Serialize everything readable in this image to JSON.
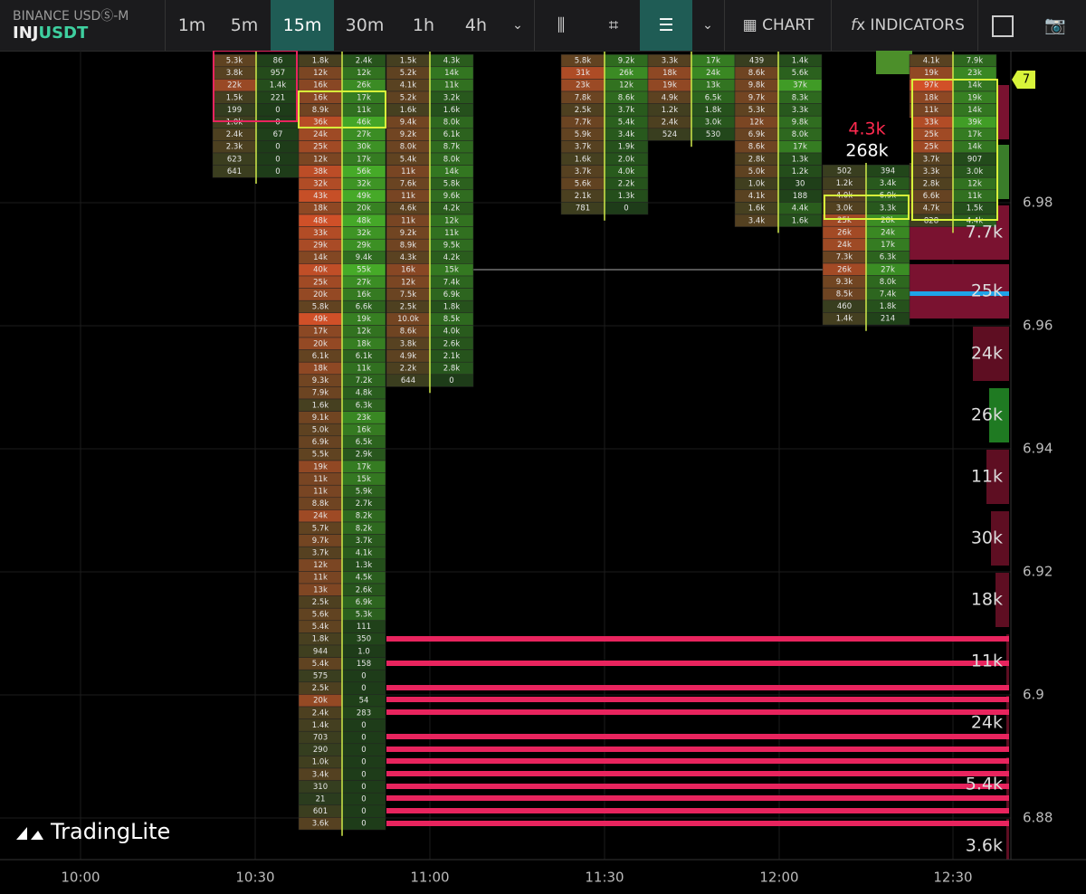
{
  "header": {
    "exchange": "BINANCE USDⓈ-M",
    "base": "INJ",
    "quote": "USDT",
    "intervals": [
      "1m",
      "5m",
      "15m",
      "30m",
      "1h",
      "4h"
    ],
    "chart": "CHART",
    "indicators": "INDICATORS"
  },
  "logo": "TradingLite",
  "price_axis": [
    "6.98",
    "6.96",
    "6.94",
    "6.92",
    "6.9",
    "6.88"
  ],
  "time_axis": [
    "10:00",
    "10:30",
    "11:00",
    "11:30",
    "12:00",
    "12:30"
  ],
  "price_marker": "7",
  "big_labels": [
    "4.3k",
    "268k"
  ],
  "heatmap_labels": [
    "7.7k",
    "25k",
    "24k",
    "26k",
    "11k",
    "30k",
    "18k",
    "11k",
    "24k",
    "5.4k",
    "3.6k"
  ],
  "columns": [
    {
      "cells": [
        [
          "5.3k",
          "86"
        ],
        [
          "3.8k",
          "957"
        ],
        [
          "22k",
          "1.4k"
        ],
        [
          "1.5k",
          "221"
        ],
        [
          "199",
          "0"
        ],
        [
          "1.0k",
          "0"
        ],
        [
          "2.4k",
          "67"
        ],
        [
          "2.3k",
          "0"
        ],
        [
          "623",
          "0"
        ],
        [
          "641",
          "0"
        ]
      ]
    },
    {
      "cells": [
        [
          "1.8k",
          "2.4k"
        ],
        [
          "12k",
          "12k"
        ],
        [
          "16k",
          "26k"
        ],
        [
          "16k",
          "17k"
        ],
        [
          "8.9k",
          "11k"
        ],
        [
          "36k",
          "46k"
        ],
        [
          "24k",
          "27k"
        ],
        [
          "25k",
          "30k"
        ],
        [
          "12k",
          "17k"
        ],
        [
          "38k",
          "56k"
        ],
        [
          "32k",
          "32k"
        ],
        [
          "43k",
          "49k"
        ],
        [
          "18k",
          "20k"
        ],
        [
          "48k",
          "48k"
        ],
        [
          "33k",
          "32k"
        ],
        [
          "29k",
          "29k"
        ],
        [
          "14k",
          "9.4k"
        ],
        [
          "40k",
          "55k"
        ],
        [
          "25k",
          "27k"
        ],
        [
          "20k",
          "16k"
        ],
        [
          "5.8k",
          "6.6k"
        ],
        [
          "49k",
          "19k"
        ],
        [
          "17k",
          "12k"
        ],
        [
          "20k",
          "18k"
        ],
        [
          "6.1k",
          "6.1k"
        ],
        [
          "18k",
          "11k"
        ],
        [
          "9.3k",
          "7.2k"
        ],
        [
          "7.9k",
          "4.8k"
        ],
        [
          "1.6k",
          "6.3k"
        ],
        [
          "9.1k",
          "23k"
        ],
        [
          "5.0k",
          "16k"
        ],
        [
          "6.9k",
          "6.5k"
        ],
        [
          "5.5k",
          "2.9k"
        ],
        [
          "19k",
          "17k"
        ],
        [
          "11k",
          "15k"
        ],
        [
          "11k",
          "5.9k"
        ],
        [
          "8.8k",
          "2.7k"
        ],
        [
          "24k",
          "8.2k"
        ],
        [
          "5.7k",
          "8.2k"
        ],
        [
          "9.7k",
          "3.7k"
        ],
        [
          "3.7k",
          "4.1k"
        ],
        [
          "12k",
          "1.3k"
        ],
        [
          "11k",
          "4.5k"
        ],
        [
          "13k",
          "2.6k"
        ],
        [
          "2.5k",
          "6.9k"
        ],
        [
          "5.6k",
          "5.3k"
        ],
        [
          "5.4k",
          "111"
        ],
        [
          "1.8k",
          "350"
        ],
        [
          "944",
          "1.0"
        ],
        [
          "5.4k",
          "158"
        ],
        [
          "575",
          "0"
        ],
        [
          "2.5k",
          "0"
        ],
        [
          "20k",
          "54"
        ],
        [
          "2.4k",
          "283"
        ],
        [
          "1.4k",
          "0"
        ],
        [
          "703",
          "0"
        ],
        [
          "290",
          "0"
        ],
        [
          "1.0k",
          "0"
        ],
        [
          "3.4k",
          "0"
        ],
        [
          "310",
          "0"
        ],
        [
          "21",
          "0"
        ],
        [
          "601",
          "0"
        ],
        [
          "3.6k",
          "0"
        ]
      ]
    },
    {
      "cells": [
        [
          "1.5k",
          "4.3k"
        ],
        [
          "5.2k",
          "14k"
        ],
        [
          "4.1k",
          "11k"
        ],
        [
          "5.2k",
          "3.2k"
        ],
        [
          "1.6k",
          "1.6k"
        ],
        [
          "9.4k",
          "8.0k"
        ],
        [
          "9.2k",
          "6.1k"
        ],
        [
          "8.0k",
          "8.7k"
        ],
        [
          "5.4k",
          "8.0k"
        ],
        [
          "11k",
          "14k"
        ],
        [
          "7.6k",
          "5.8k"
        ],
        [
          "11k",
          "9.6k"
        ],
        [
          "4.6k",
          "4.2k"
        ],
        [
          "11k",
          "12k"
        ],
        [
          "9.2k",
          "11k"
        ],
        [
          "8.9k",
          "9.5k"
        ],
        [
          "4.3k",
          "4.2k"
        ],
        [
          "16k",
          "15k"
        ],
        [
          "12k",
          "7.4k"
        ],
        [
          "7.5k",
          "6.9k"
        ],
        [
          "2.5k",
          "1.8k"
        ],
        [
          "10.0k",
          "8.5k"
        ],
        [
          "8.6k",
          "4.0k"
        ],
        [
          "3.8k",
          "2.6k"
        ],
        [
          "4.9k",
          "2.1k"
        ],
        [
          "2.2k",
          "2.8k"
        ],
        [
          "644",
          "0"
        ]
      ]
    },
    {
      "cells": [
        [
          "5.8k",
          "9.2k"
        ],
        [
          "31k",
          "26k"
        ],
        [
          "23k",
          "12k"
        ],
        [
          "7.8k",
          "8.6k"
        ],
        [
          "2.5k",
          "3.7k"
        ],
        [
          "7.7k",
          "5.4k"
        ],
        [
          "5.9k",
          "3.4k"
        ],
        [
          "3.7k",
          "1.9k"
        ],
        [
          "1.6k",
          "2.0k"
        ],
        [
          "3.7k",
          "4.0k"
        ],
        [
          "5.6k",
          "2.2k"
        ],
        [
          "2.1k",
          "1.3k"
        ],
        [
          "781",
          "0"
        ]
      ]
    },
    {
      "cells": [
        [
          "3.3k",
          "17k"
        ],
        [
          "18k",
          "24k"
        ],
        [
          "19k",
          "13k"
        ],
        [
          "4.9k",
          "6.5k"
        ],
        [
          "1.2k",
          "1.8k"
        ],
        [
          "2.4k",
          "3.0k"
        ],
        [
          "524",
          "530"
        ]
      ]
    },
    {
      "cells": [
        [
          "439",
          "1.4k"
        ],
        [
          "8.6k",
          "5.6k"
        ],
        [
          "9.8k",
          "37k"
        ],
        [
          "9.7k",
          "8.3k"
        ],
        [
          "5.3k",
          "3.3k"
        ],
        [
          "12k",
          "9.8k"
        ],
        [
          "6.9k",
          "8.0k"
        ],
        [
          "8.6k",
          "17k"
        ],
        [
          "2.8k",
          "1.3k"
        ],
        [
          "5.0k",
          "1.2k"
        ],
        [
          "1.0k",
          "30"
        ],
        [
          "4.1k",
          "188"
        ],
        [
          "1.6k",
          "4.4k"
        ],
        [
          "3.4k",
          "1.6k"
        ]
      ]
    },
    {
      "cells": [
        [
          "502",
          "394"
        ],
        [
          "1.2k",
          "3.4k"
        ],
        [
          "4.0k",
          "6.9k"
        ],
        [
          "3.0k",
          "3.3k"
        ],
        [
          "25k",
          "28k"
        ],
        [
          "26k",
          "24k"
        ],
        [
          "24k",
          "17k"
        ],
        [
          "7.3k",
          "6.3k"
        ],
        [
          "26k",
          "27k"
        ],
        [
          "9.3k",
          "8.0k"
        ],
        [
          "8.5k",
          "7.4k"
        ],
        [
          "460",
          "1.8k"
        ],
        [
          "1.4k",
          "214"
        ]
      ]
    },
    {
      "cells": [
        [
          "4.1k",
          "7.9k"
        ],
        [
          "19k",
          "23k"
        ],
        [
          "97k",
          "14k"
        ],
        [
          "18k",
          "19k"
        ],
        [
          "11k",
          "14k"
        ],
        [
          "33k",
          "39k"
        ],
        [
          "25k",
          "17k"
        ],
        [
          "25k",
          "14k"
        ],
        [
          "3.7k",
          "907"
        ],
        [
          "3.3k",
          "3.0k"
        ],
        [
          "2.8k",
          "12k"
        ],
        [
          "6.6k",
          "11k"
        ],
        [
          "4.7k",
          "1.5k"
        ],
        [
          "828",
          "4.4k"
        ]
      ]
    }
  ]
}
